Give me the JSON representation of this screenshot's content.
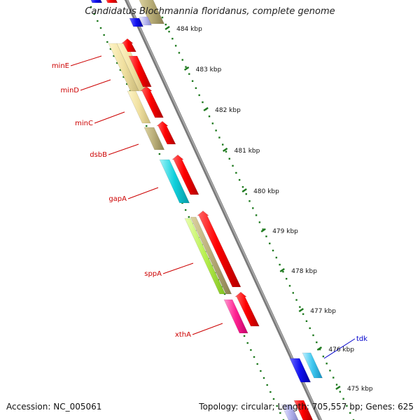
{
  "title": "Candidatus Blochmannia floridanus, complete genome",
  "accession": "Accession: NC_005061",
  "topology": "Topology: circular; Length: 705,557 bp; Genes: 625",
  "colors": {
    "backbone": "#8a8a8a",
    "tick_dots": "#1f7a1f",
    "label_left": "#cc0000",
    "label_right": "#0000cc"
  },
  "scale_labels": [
    "484 kbp",
    "483 kbp",
    "482 kbp",
    "481 kbp",
    "480 kbp",
    "479 kbp",
    "478 kbp",
    "477 kbp",
    "476 kbp",
    "475 kbp"
  ],
  "gene_labels": [
    {
      "text": "minE",
      "side": "left",
      "color": "#cc0000"
    },
    {
      "text": "minD",
      "side": "left",
      "color": "#cc0000"
    },
    {
      "text": "minC",
      "side": "left",
      "color": "#cc0000"
    },
    {
      "text": "dsbB",
      "side": "left",
      "color": "#cc0000"
    },
    {
      "text": "gapA",
      "side": "left",
      "color": "#cc0000"
    },
    {
      "text": "sppA",
      "side": "left",
      "color": "#cc0000"
    },
    {
      "text": "xthA",
      "side": "left",
      "color": "#cc0000"
    },
    {
      "text": "tdk",
      "side": "right",
      "color": "#0000cc"
    }
  ]
}
